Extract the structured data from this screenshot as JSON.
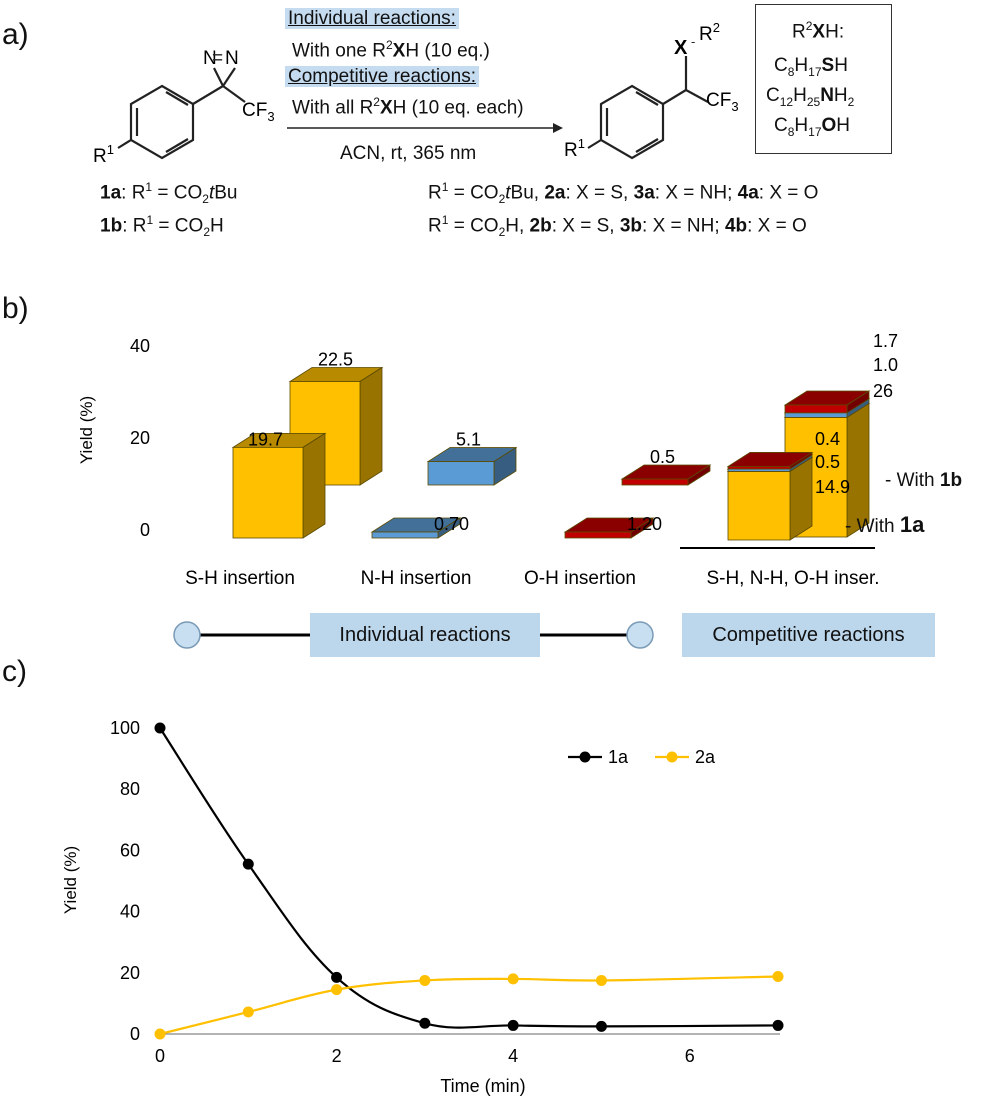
{
  "panel_labels": [
    "a)",
    "b)",
    "c)"
  ],
  "scheme": {
    "atom_N1": "N",
    "atom_N2": "N",
    "atom_CF3": "CF",
    "atom_CF3_sub": "3",
    "atom_R": "R",
    "atom_R_sup": "1",
    "atom_X": "X",
    "atom_R2": "R",
    "atom_R2_sup": "2",
    "product_CF3": "CF",
    "product_CF3_sub": "3",
    "product_R": "R",
    "product_R_sup": "1",
    "individual_heading": "Individual reactions:",
    "individual_line_pre": "With one R",
    "individual_line_sup": "2",
    "individual_line_bold": "X",
    "individual_line_post": "H (10 eq.)",
    "competitive_heading": "Competitive reactions:",
    "competitive_line_pre": "With all R",
    "competitive_line_sup": "2",
    "competitive_line_bold": "X",
    "competitive_line_post": "H (10 eq. each)",
    "conditions": "ACN, rt, 365 nm",
    "reagent_title_pre": "R",
    "reagent_title_sup": "2",
    "reagent_title_bold": "X",
    "reagent_title_post": "H:",
    "reagents": [
      {
        "pre": "C",
        "sub1": "8",
        "mid": "H",
        "sub2": "17",
        "bold": "S",
        "post": "H",
        "sub3": ""
      },
      {
        "pre": "C",
        "sub1": "12",
        "mid": "H",
        "sub2": "25",
        "bold": "N",
        "post": "H",
        "sub3": "2"
      },
      {
        "pre": "C",
        "sub1": "8",
        "mid": "H",
        "sub2": "17",
        "bold": "O",
        "post": "H",
        "sub3": ""
      }
    ],
    "sm_1a_id": "1a",
    "sm_1a_text": ": R",
    "sm_1a_sup": "1",
    "sm_1a_rest_pre": " =  CO",
    "sm_1a_sub": "2",
    "sm_1a_tbu_t": "t",
    "sm_1a_tbu_bu": "Bu",
    "sm_1b_id": "1b",
    "sm_1b_text": ": R",
    "sm_1b_sup": "1",
    "sm_1b_rest_pre": " = CO",
    "sm_1b_sub": "2",
    "sm_1b_post": "H",
    "prod_line1": {
      "pre": "R",
      "sup": "1",
      "a": " =  CO",
      "sub": "2",
      "t": "t",
      "bu": "Bu, ",
      "id1": "2a",
      "x1": ":  X = S, ",
      "id2": "3a",
      "x2": ": X = NH; ",
      "id3": "4a",
      "x3": ": X = O"
    },
    "prod_line2": {
      "pre": "R",
      "sup": "1",
      "a": " =  CO",
      "sub": "2",
      "post": "H, ",
      "id1": "2b",
      "x1": ":  X = S, ",
      "id2": "3b",
      "x2": ": X = NH; ",
      "id3": "4b",
      "x3": ": X = O"
    }
  },
  "chart_data": [
    {
      "type": "bar",
      "title": "",
      "ylabel": "Yield (%)",
      "xlabel": "",
      "ylim": [
        0,
        40
      ],
      "yticks": [
        0,
        20,
        40
      ],
      "categories": [
        "S-H insertion",
        "N-H insertion",
        "O-H insertion",
        "S-H, N-H, O-H inser."
      ],
      "individual": [
        {
          "category": "S-H insertion",
          "with_1a": 19.7,
          "with_1b": 22.5,
          "color": "#ffc000",
          "label_a": "19.7",
          "label_b": "22.5"
        },
        {
          "category": "N-H insertion",
          "with_1a": 0.7,
          "with_1b": 5.1,
          "color": "#5b9bd5",
          "label_a": "0.70",
          "label_b": "5.1"
        },
        {
          "category": "O-H insertion",
          "with_1a": 1.2,
          "with_1b": 0.5,
          "color": "#c00000",
          "label_a": "1.20",
          "label_b": "0.5"
        }
      ],
      "competitive": {
        "with_1a": {
          "S-H": 14.9,
          "N-H": 0.5,
          "O-H": 0.4,
          "labels": [
            "14.9",
            "0.5",
            "0.4"
          ]
        },
        "with_1b": {
          "S-H": 26,
          "N-H": 1.0,
          "O-H": 1.7,
          "labels": [
            "26",
            "1.0",
            "1.7"
          ]
        }
      },
      "series_labels": {
        "a_pre": "- With ",
        "a_bold": "1a",
        "b_pre": "- With ",
        "b_bold": "1b"
      },
      "bottom_tags": [
        "Individual reactions",
        "Competitive reactions"
      ],
      "colors": {
        "sh": "#ffc000",
        "nh": "#5b9bd5",
        "oh": "#c00000"
      }
    },
    {
      "type": "line",
      "title": "",
      "xlabel": "Time (min)",
      "ylabel": "Yield (%)",
      "xlim": [
        0,
        7
      ],
      "ylim": [
        0,
        100
      ],
      "xticks": [
        0,
        2,
        4,
        6
      ],
      "yticks": [
        0,
        20,
        40,
        60,
        80,
        100
      ],
      "x": [
        0,
        1,
        2,
        3,
        4,
        5,
        7
      ],
      "series": [
        {
          "name": "1a",
          "color": "#000000",
          "values": [
            100,
            55.5,
            18.5,
            3.5,
            2.8,
            2.5,
            2.8
          ]
        },
        {
          "name": "2a",
          "color": "#ffc000",
          "values": [
            0,
            7.2,
            14.5,
            17.5,
            18,
            17.5,
            18.8
          ]
        }
      ],
      "legend": "top-right"
    }
  ]
}
